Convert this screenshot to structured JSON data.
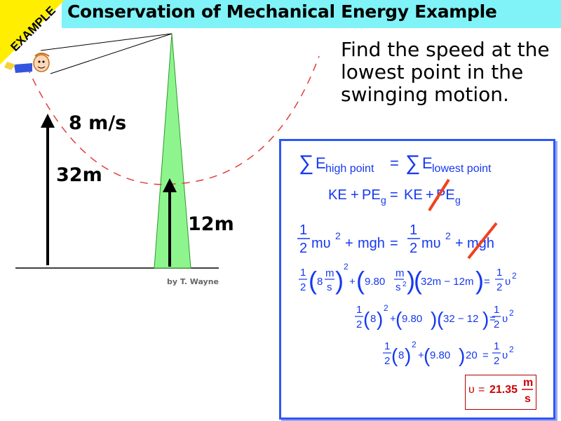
{
  "badge": {
    "text": "EXAMPLE"
  },
  "title": "Conservation of Mechanical Energy Example",
  "question": "Find the speed at the lowest point in the swinging motion.",
  "labels": {
    "velocity": "8 m/s",
    "initial_height": "32m",
    "final_height": "12m",
    "credit": "by T. Wayne"
  },
  "equations": {
    "eq1": {
      "sigma_left": "∑",
      "E1": "E",
      "sub1": "high point",
      "eq": "=",
      "sigma_right": "∑",
      "E2": "E",
      "sub2": "lowest point"
    },
    "eq2": {
      "ke1": "KE",
      "plus1": "+",
      "pe1": "PE",
      "g1": "g",
      "eq": "=",
      "ke2": "KE",
      "plus2": "+",
      "pe2": "PE",
      "g2": "g"
    },
    "eq3": {
      "one1": "1",
      "two1": "2",
      "mv1": "mυ",
      "sq1": "2",
      "plus": "+",
      "mgh": "mgh",
      "eq": "=",
      "one2": "1",
      "two2": "2",
      "mv2": "mυ",
      "sq2": "2",
      "plus2": "+",
      "mgh2": "mgh"
    },
    "eq4": {
      "one": "1",
      "two": "2",
      "eight": "8",
      "m": "m",
      "s": "s",
      "sq": "2",
      "plus": "+",
      "g": "9.80",
      "m2": "m",
      "s2": "s",
      "sq2": "2",
      "h": "32m − 12m",
      "eq": "=",
      "one2": "1",
      "two2": "2",
      "v": "υ",
      "vsq": "2"
    },
    "eq5": {
      "one": "1",
      "two": "2",
      "eight": "8",
      "sq": "2",
      "plus": "+",
      "g": "9.80",
      "h": "32 − 12",
      "eq": "=",
      "one2": "1",
      "two2": "2",
      "v": "υ",
      "vsq": "2"
    },
    "eq6": {
      "one": "1",
      "two": "2",
      "eight": "8",
      "sq": "2",
      "plus": "+",
      "g": "9.80",
      "twenty": "20",
      "eq": "=",
      "one2": "1",
      "two2": "2",
      "v": "υ",
      "vsq": "2"
    },
    "answer": {
      "v": "υ",
      "eq": "=",
      "value": "21.35",
      "m": "m",
      "s": "s"
    }
  },
  "colors": {
    "title_bar": "#7ff3f7",
    "badge": "#ffee00",
    "pole": "#8ef58e",
    "arc": "#e53b3b",
    "equation_blue": "#1538f0",
    "box_border": "#2f57f5",
    "cross_out": "#f2401e",
    "answer_red": "#cc0000"
  }
}
